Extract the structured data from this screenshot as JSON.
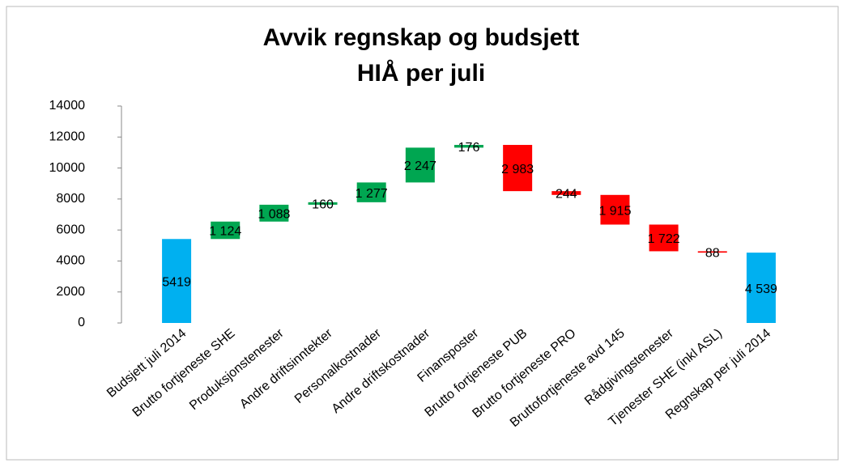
{
  "chart_data": {
    "type": "waterfall",
    "title": [
      "Avvik regnskap og budsjett",
      "HIÅ per juli"
    ],
    "categories": [
      "Budsjett juli 2014",
      "Brutto fortjeneste SHE",
      "Produksjonstenester",
      "Andre driftsinntekter",
      "Personalkostnader",
      "Andre driftskostnader",
      "Finansposter",
      "Brutto fortjeneste PUB",
      "Brutto fortjeneste PRO",
      "Bruttofortjeneste avd 145",
      "Rådgivingstenester",
      "Tjenester SHE (inkl ASL)",
      "Regnskap per juli 2014"
    ],
    "measure": [
      "absolute",
      "relative",
      "relative",
      "relative",
      "relative",
      "relative",
      "relative",
      "relative",
      "relative",
      "relative",
      "relative",
      "relative",
      "total"
    ],
    "values": [
      5419,
      1124,
      1088,
      160,
      1277,
      2247,
      176,
      -2983,
      -244,
      -1915,
      -1722,
      -88,
      4539
    ],
    "value_labels": [
      "5419",
      "1 124",
      "1 088",
      "160",
      "1 277",
      "2 247",
      "176",
      "2 983",
      "244",
      "1 915",
      "1 722",
      "88",
      "4 539"
    ],
    "total_color": "#00b0f0",
    "increase_color": "#00a651",
    "decrease_color": "#ff0000",
    "ylim": [
      0,
      14000
    ],
    "yticks": [
      0,
      2000,
      4000,
      6000,
      8000,
      10000,
      12000,
      14000
    ],
    "grid": false
  }
}
